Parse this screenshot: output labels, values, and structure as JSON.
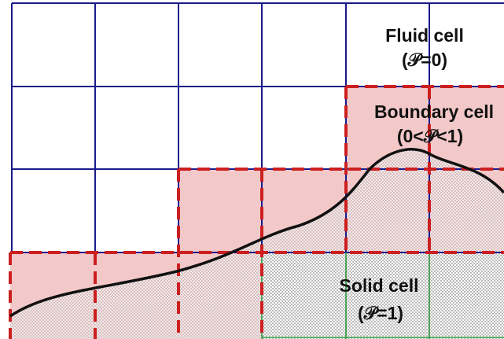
{
  "labels": {
    "fluid_title": "Fluid cell",
    "fluid_cond": "(𝒫=0)",
    "boundary_title": "Boundary cell",
    "boundary_cond": "(0<𝒫<1)",
    "solid_title": "Solid cell",
    "solid_cond": "(𝒫=1)"
  },
  "colors": {
    "grid_line": "#1a1a8a",
    "solid_grid_line": "#2e9a3e",
    "boundary_fill": "#f2c8c8",
    "boundary_dash": "#cc1f1f",
    "surface_line": "#111111",
    "dot_pattern": "#555555"
  }
}
